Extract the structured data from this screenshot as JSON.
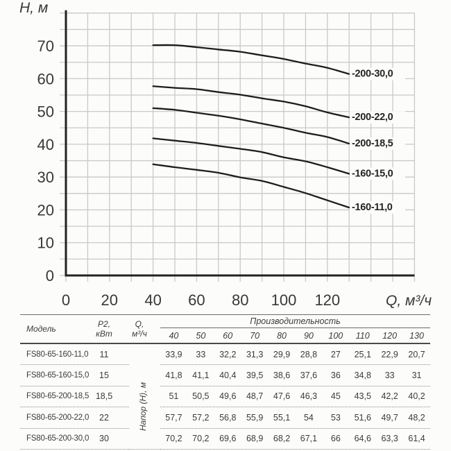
{
  "colors": {
    "background": "#fcfcfb",
    "grid": "#c9c9c9",
    "axis": "#222222",
    "curve": "#1d1d1d",
    "text": "#3b3b3b",
    "rule": "#5a5a5a",
    "dotted": "#8a8a8a"
  },
  "chart_data": {
    "type": "line",
    "title": "",
    "xlabel": "Q, м³/ч",
    "ylabel": "H, м",
    "x": [
      40,
      50,
      60,
      70,
      80,
      90,
      100,
      110,
      120,
      130
    ],
    "series": [
      {
        "name": "-200-30,0",
        "values": [
          70.2,
          70.2,
          69.6,
          68.9,
          68.2,
          67.1,
          66,
          64.6,
          63.3,
          61.4
        ]
      },
      {
        "name": "-200-22,0",
        "values": [
          57.7,
          57.2,
          56.8,
          55.9,
          55.1,
          54,
          53,
          51.6,
          49.7,
          48.2
        ]
      },
      {
        "name": "-200-18,5",
        "values": [
          51,
          50.5,
          49.6,
          48.7,
          47.6,
          46.3,
          45,
          43.5,
          42.2,
          40.2
        ]
      },
      {
        "name": "-160-15,0",
        "values": [
          41.8,
          41.1,
          40.4,
          39.5,
          38.6,
          37.6,
          36,
          34.8,
          33,
          31
        ]
      },
      {
        "name": "-160-11,0",
        "values": [
          33.9,
          33,
          32.2,
          31.3,
          29.9,
          28.8,
          27,
          25.1,
          22.9,
          20.7
        ]
      }
    ],
    "xlim": [
      0,
      160
    ],
    "ylim": [
      0,
      80
    ],
    "x_tick_labels": [
      0,
      20,
      40,
      60,
      80,
      100,
      120
    ],
    "y_tick_labels": [
      0,
      10,
      20,
      30,
      40,
      50,
      60,
      70
    ],
    "x_grid_step": 10,
    "y_grid_step": 5,
    "grid": true,
    "legend_position": "inline-right-labels"
  },
  "table": {
    "col_model": "Модель",
    "col_p2_lines": [
      "P2,",
      "кВт"
    ],
    "col_q_lines": [
      "Q,",
      "м³/ч"
    ],
    "group_header": "Производительность",
    "q_values": [
      "40",
      "50",
      "60",
      "70",
      "80",
      "90",
      "100",
      "110",
      "120",
      "130"
    ],
    "side_label": "Напор (H), м",
    "rows": [
      {
        "model": "FS80-65-160-11,0",
        "p2": "11",
        "values": [
          "33,9",
          "33",
          "32,2",
          "31,3",
          "29,9",
          "28,8",
          "27",
          "25,1",
          "22,9",
          "20,7"
        ]
      },
      {
        "model": "FS80-65-160-15,0",
        "p2": "15",
        "values": [
          "41,8",
          "41,1",
          "40,4",
          "39,5",
          "38,6",
          "37,6",
          "36",
          "34,8",
          "33",
          "31"
        ]
      },
      {
        "model": "FS80-65-200-18,5",
        "p2": "18,5",
        "values": [
          "51",
          "50,5",
          "49,6",
          "48,7",
          "47,6",
          "46,3",
          "45",
          "43,5",
          "42,2",
          "40,2"
        ]
      },
      {
        "model": "FS80-65-200-22,0",
        "p2": "22",
        "values": [
          "57,7",
          "57,2",
          "56,8",
          "55,9",
          "55,1",
          "54",
          "53",
          "51,6",
          "49,7",
          "48,2"
        ]
      },
      {
        "model": "FS80-65-200-30,0",
        "p2": "30",
        "values": [
          "70,2",
          "70,2",
          "69,6",
          "68,9",
          "68,2",
          "67,1",
          "66",
          "64,6",
          "63,3",
          "61,4"
        ]
      }
    ]
  }
}
